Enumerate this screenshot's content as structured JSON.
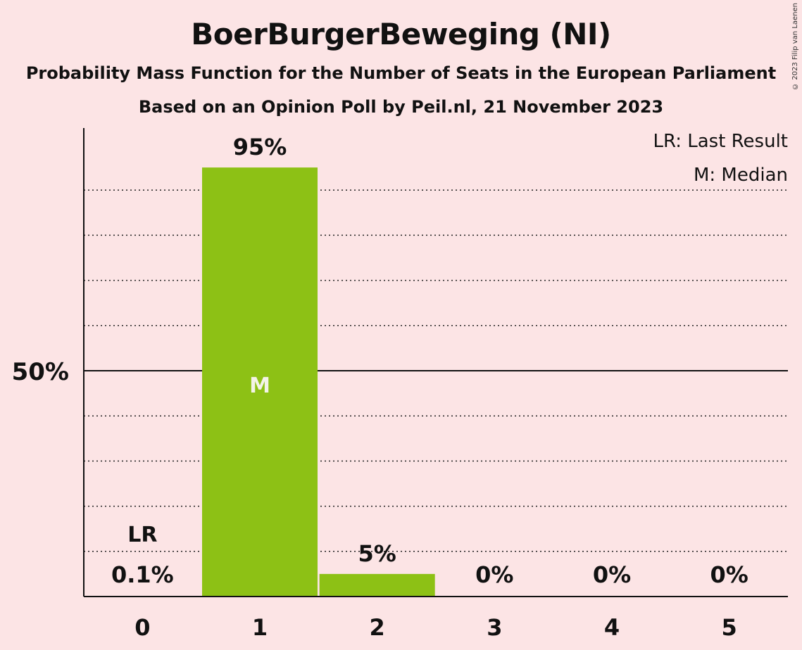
{
  "chart_data": {
    "type": "bar",
    "title": "BoerBurgerBeweging (NI)",
    "subtitle": "Probability Mass Function for the Number of Seats in the European Parliament",
    "subtitle2": "Based on an Opinion Poll by Peil.nl, 21 November 2023",
    "copyright": "© 2023 Filip van Laenen",
    "categories": [
      "0",
      "1",
      "2",
      "3",
      "4",
      "5"
    ],
    "values": [
      0.1,
      95,
      5,
      0,
      0,
      0
    ],
    "value_labels": [
      "0.1%",
      "95%",
      "5%",
      "0%",
      "0%",
      "0%"
    ],
    "ylim": [
      0,
      100
    ],
    "y_tick_label": "50%",
    "y_tick_value": 50,
    "gridlines": [
      10,
      20,
      30,
      40,
      60,
      70,
      80,
      90
    ],
    "bar_color": "#8dc115",
    "last_result_index": 0,
    "last_result_marker": "LR",
    "median_index": 1,
    "median_marker": "M",
    "legend": [
      "LR: Last Result",
      "M: Median"
    ],
    "legend_position": "top-right"
  }
}
